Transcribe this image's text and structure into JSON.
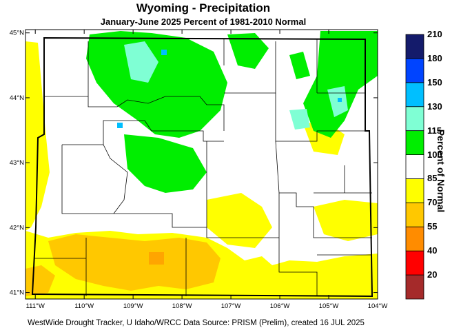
{
  "title": "Wyoming - Precipitation",
  "subtitle": "January-June 2025  Percent of 1981-2010 Normal",
  "footer": "WestWide Drought Tracker, U Idaho/WRCC Data Source: PRISM (Prelim), created 16 JUL 2025",
  "legend": {
    "title": "Percent of Normal",
    "colors": [
      "#a52a2a",
      "#ff0000",
      "#ff8c00",
      "#ffc800",
      "#ffff00",
      "#ffffff",
      "#00ee00",
      "#7fffd4",
      "#00bfff",
      "#0044ff",
      "#141b6b"
    ],
    "labels": [
      "20",
      "40",
      "55",
      "70",
      "85",
      "100",
      "115",
      "130",
      "150",
      "180",
      "210"
    ]
  },
  "axes": {
    "lon_labels": [
      "111°W",
      "110°W",
      "109°W",
      "108°W",
      "107°W",
      "106°W",
      "105°W",
      "104°W"
    ],
    "lat_labels": [
      "45°N",
      "44°N",
      "43°N",
      "42°N",
      "41°N"
    ]
  },
  "chart_data": {
    "type": "heatmap",
    "title": "Wyoming - Precipitation",
    "subtitle": "January-June 2025  Percent of 1981-2010 Normal",
    "x_range": [
      -111.2,
      -104.0
    ],
    "y_range": [
      40.9,
      45.05
    ],
    "xticks": [
      -111,
      -110,
      -109,
      -108,
      -107,
      -106,
      -105,
      -104
    ],
    "yticks": [
      41,
      42,
      43,
      44,
      45
    ],
    "legend_bins_percent": [
      20,
      40,
      55,
      70,
      85,
      100,
      115,
      130,
      150,
      180,
      210
    ]
  }
}
